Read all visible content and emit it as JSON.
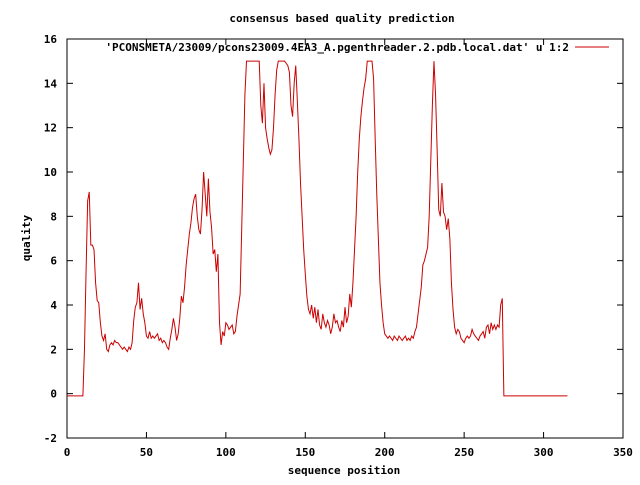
{
  "chart_data": {
    "type": "line",
    "title": "consensus based quality prediction",
    "xlabel": "sequence position",
    "ylabel": "quality",
    "xlim": [
      0,
      350
    ],
    "ylim": [
      -2,
      16
    ],
    "xticks": [
      0,
      50,
      100,
      150,
      200,
      250,
      300,
      350
    ],
    "yticks": [
      -2,
      0,
      2,
      4,
      6,
      8,
      10,
      12,
      14,
      16
    ],
    "legend_position": "top-right",
    "grid": false,
    "series": [
      {
        "name": "'PCONSMETA/23009/pcons23009.4EA3_A.pgenthreader.2.pdb.local.dat' u 1:2",
        "color": "#cc0000",
        "x": [
          0,
          10,
          11,
          12,
          13,
          14,
          15,
          16,
          17,
          18,
          19,
          20,
          21,
          22,
          23,
          24,
          25,
          26,
          27,
          28,
          29,
          30,
          31,
          32,
          33,
          34,
          35,
          36,
          37,
          38,
          39,
          40,
          41,
          42,
          43,
          44,
          45,
          46,
          47,
          48,
          49,
          50,
          51,
          52,
          53,
          54,
          55,
          56,
          57,
          58,
          59,
          60,
          61,
          62,
          63,
          64,
          65,
          66,
          67,
          68,
          69,
          70,
          71,
          72,
          73,
          74,
          75,
          76,
          77,
          78,
          79,
          80,
          81,
          82,
          83,
          84,
          85,
          86,
          87,
          88,
          89,
          90,
          91,
          92,
          93,
          94,
          95,
          96,
          97,
          98,
          99,
          100,
          101,
          102,
          103,
          104,
          105,
          106,
          107,
          108,
          109,
          110,
          111,
          112,
          113,
          114,
          115,
          116,
          117,
          118,
          119,
          120,
          121,
          122,
          123,
          124,
          125,
          126,
          127,
          128,
          129,
          130,
          131,
          132,
          133,
          134,
          135,
          136,
          137,
          138,
          139,
          140,
          141,
          142,
          143,
          144,
          145,
          146,
          147,
          148,
          149,
          150,
          151,
          152,
          153,
          154,
          155,
          156,
          157,
          158,
          159,
          160,
          161,
          162,
          163,
          164,
          165,
          166,
          167,
          168,
          169,
          170,
          171,
          172,
          173,
          174,
          175,
          176,
          177,
          178,
          179,
          180,
          181,
          182,
          183,
          184,
          185,
          186,
          187,
          188,
          189,
          190,
          191,
          192,
          193,
          194,
          195,
          196,
          197,
          198,
          199,
          200,
          201,
          202,
          203,
          204,
          205,
          206,
          207,
          208,
          209,
          210,
          211,
          212,
          213,
          214,
          215,
          216,
          217,
          218,
          219,
          220,
          221,
          222,
          223,
          224,
          225,
          226,
          227,
          228,
          229,
          230,
          231,
          232,
          233,
          234,
          235,
          236,
          237,
          238,
          239,
          240,
          241,
          242,
          243,
          244,
          245,
          246,
          247,
          248,
          249,
          250,
          251,
          252,
          253,
          254,
          255,
          256,
          257,
          258,
          259,
          260,
          261,
          262,
          263,
          264,
          265,
          266,
          267,
          268,
          269,
          270,
          271,
          272,
          273,
          274,
          275,
          276,
          315
        ],
        "y": [
          -0.1,
          -0.1,
          2.0,
          5.5,
          8.7,
          9.1,
          6.7,
          6.7,
          6.5,
          5.0,
          4.2,
          4.1,
          3.2,
          2.6,
          2.4,
          2.7,
          2.0,
          1.9,
          2.2,
          2.3,
          2.2,
          2.4,
          2.3,
          2.3,
          2.2,
          2.1,
          2.0,
          2.1,
          2.0,
          1.9,
          2.1,
          2.0,
          2.3,
          3.3,
          3.9,
          4.1,
          5.0,
          3.8,
          4.3,
          3.6,
          3.2,
          2.6,
          2.5,
          2.8,
          2.5,
          2.6,
          2.5,
          2.6,
          2.7,
          2.4,
          2.5,
          2.3,
          2.4,
          2.3,
          2.1,
          2.0,
          2.5,
          2.9,
          3.4,
          3.0,
          2.4,
          2.7,
          3.4,
          4.4,
          4.1,
          4.8,
          5.8,
          6.5,
          7.2,
          7.7,
          8.4,
          8.8,
          9.0,
          8.0,
          7.4,
          7.2,
          8.3,
          10.0,
          9.0,
          8.0,
          9.7,
          8.2,
          7.5,
          6.3,
          6.5,
          5.5,
          6.3,
          3.2,
          2.2,
          2.8,
          2.6,
          3.2,
          3.1,
          2.9,
          3.0,
          3.1,
          2.7,
          2.8,
          3.5,
          4.0,
          4.5,
          7.5,
          10.5,
          13.5,
          15.0,
          15.0,
          15.0,
          15.0,
          15.0,
          15.0,
          15.0,
          15.0,
          15.0,
          13.0,
          12.2,
          14.0,
          12.0,
          11.5,
          11.1,
          10.8,
          11.0,
          12.0,
          13.5,
          14.6,
          15.0,
          15.0,
          15.0,
          15.0,
          15.0,
          14.9,
          14.8,
          14.5,
          13.0,
          12.5,
          14.0,
          14.8,
          13.2,
          11.5,
          9.5,
          8.0,
          6.5,
          5.4,
          4.4,
          3.8,
          3.6,
          4.0,
          3.4,
          3.9,
          3.2,
          3.8,
          3.1,
          2.9,
          3.6,
          3.2,
          3.0,
          3.3,
          3.1,
          2.7,
          3.0,
          3.6,
          3.2,
          3.3,
          3.0,
          2.8,
          3.3,
          3.0,
          3.9,
          3.2,
          3.5,
          4.5,
          3.9,
          5.0,
          6.5,
          8.0,
          10.0,
          11.5,
          12.5,
          13.2,
          13.8,
          14.2,
          15.0,
          15.0,
          15.0,
          15.0,
          14.2,
          11.5,
          9.0,
          7.0,
          5.0,
          4.0,
          3.2,
          2.7,
          2.6,
          2.5,
          2.6,
          2.5,
          2.4,
          2.6,
          2.5,
          2.4,
          2.6,
          2.5,
          2.4,
          2.5,
          2.6,
          2.4,
          2.5,
          2.4,
          2.6,
          2.5,
          2.8,
          3.0,
          3.6,
          4.2,
          4.8,
          5.8,
          6.0,
          6.3,
          6.6,
          8.0,
          10.5,
          13.0,
          15.0,
          13.5,
          11.0,
          8.3,
          8.0,
          9.5,
          8.2,
          8.0,
          7.4,
          7.9,
          7.0,
          5.0,
          3.8,
          3.0,
          2.7,
          2.9,
          2.8,
          2.5,
          2.4,
          2.3,
          2.5,
          2.6,
          2.5,
          2.6,
          2.9,
          2.7,
          2.6,
          2.5,
          2.4,
          2.6,
          2.7,
          2.8,
          2.5,
          3.0,
          3.1,
          2.7,
          3.2,
          2.9,
          3.1,
          2.9,
          3.1,
          3.0,
          4.0,
          4.3,
          -0.1,
          -0.1,
          -0.1
        ]
      }
    ]
  }
}
